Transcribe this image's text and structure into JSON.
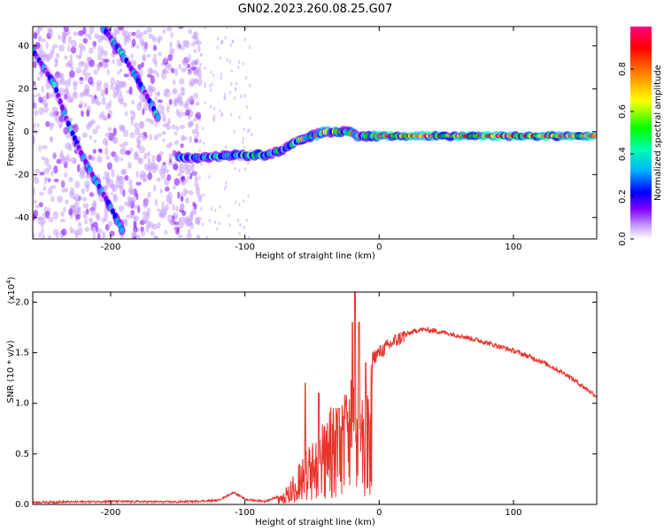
{
  "figure": {
    "title": "GN02.2023.260.08.25.G07"
  },
  "chart_data": [
    {
      "type": "heatmap",
      "xlabel": "Height of straight line (km)",
      "ylabel": "Frequency (Hz)",
      "xlim": [
        -258,
        162
      ],
      "ylim": [
        -50,
        49
      ],
      "x_ticks": [
        -200,
        -100,
        0,
        100
      ],
      "y_ticks": [
        -40,
        -20,
        0,
        20,
        40
      ],
      "colorbar": {
        "label": "Normalized spectral amplitude",
        "range": [
          0,
          1
        ],
        "ticks": [
          "0.0",
          "0.2",
          "0.4",
          "0.6",
          "0.8"
        ],
        "tick_values": [
          0,
          0.2,
          0.4,
          0.6,
          0.8
        ],
        "colors": [
          "#ffffff",
          "#c9a0ff",
          "#8000ff",
          "#0000ff",
          "#00b0ff",
          "#00ffb0",
          "#00ff00",
          "#ffff00",
          "#ff8000",
          "#ff0000",
          "#ff0080"
        ]
      },
      "features": [
        {
          "name": "",
          "points": [
            [
              -258,
              38
            ],
            [
              -242,
              22
            ],
            [
              -233,
              6
            ],
            [
              -222,
              -10
            ],
            [
              -212,
              -22
            ],
            [
              -200,
              -35
            ],
            [
              -190,
              -48
            ]
          ]
        },
        {
          "name": "",
          "points": [
            [
              -205,
              48
            ],
            [
              -190,
              35
            ],
            [
              -176,
              20
            ],
            [
              -163,
              5
            ]
          ]
        },
        {
          "name": "",
          "points": [
            [
              -150,
              -12
            ],
            [
              -130,
              -12
            ],
            [
              -110,
              -11
            ],
            [
              -95,
              -11
            ],
            [
              -85,
              -11
            ],
            [
              -70,
              -8
            ],
            [
              -60,
              -4
            ],
            [
              -50,
              -2
            ],
            [
              -40,
              0
            ],
            [
              -25,
              0
            ],
            [
              -15,
              -2
            ],
            [
              0,
              -2
            ],
            [
              30,
              -2
            ],
            [
              60,
              -2
            ],
            [
              100,
              -2
            ],
            [
              162,
              -2
            ]
          ]
        }
      ]
    },
    {
      "type": "line",
      "xlabel": "Height of straight line (km)",
      "ylabel": "SNR (10 * v/v)",
      "y_multiplier": "(x10",
      "y_multiplier_exp": "4",
      "xlim": [
        -258,
        162
      ],
      "ylim": [
        0,
        2.1
      ],
      "x_ticks": [
        -200,
        -100,
        0,
        100
      ],
      "y_ticks": [
        "0.0",
        "0.5",
        "1.0",
        "1.5",
        "2.0"
      ],
      "y_tick_values": [
        0,
        0.5,
        1.0,
        1.5,
        2.0
      ],
      "series": [
        {
          "color": "#e8332b",
          "envelope": [
            [
              -258,
              0.02
            ],
            [
              -200,
              0.03
            ],
            [
              -150,
              0.025
            ],
            [
              -120,
              0.04
            ],
            [
              -108,
              0.12
            ],
            [
              -100,
              0.05
            ],
            [
              -85,
              0.03
            ],
            [
              -75,
              0.08
            ],
            [
              -68,
              0.2
            ],
            [
              -60,
              0.4
            ],
            [
              -52,
              0.6
            ],
            [
              -45,
              0.75
            ],
            [
              -40,
              0.9
            ],
            [
              -30,
              1.1
            ],
            [
              -20,
              1.25
            ],
            [
              -10,
              1.4
            ],
            [
              0,
              1.5
            ],
            [
              10,
              1.6
            ],
            [
              20,
              1.68
            ],
            [
              30,
              1.73
            ],
            [
              40,
              1.72
            ],
            [
              60,
              1.67
            ],
            [
              80,
              1.6
            ],
            [
              100,
              1.52
            ],
            [
              120,
              1.42
            ],
            [
              140,
              1.28
            ],
            [
              162,
              1.07
            ]
          ],
          "spikes": [
            [
              -55,
              1.2
            ],
            [
              -45,
              1.1
            ],
            [
              -20,
              1.8
            ],
            [
              -18,
              2.1
            ],
            [
              -15,
              1.8
            ],
            [
              -30,
              0.95
            ],
            [
              -10,
              1.4
            ]
          ]
        }
      ]
    }
  ]
}
